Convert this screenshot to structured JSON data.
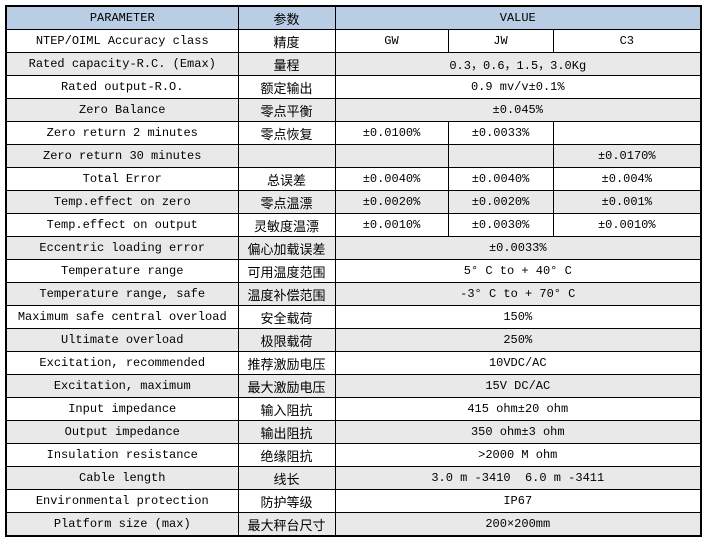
{
  "table": {
    "colors": {
      "header_bg": "#b9cde5",
      "row_alt_bg": "#e9e9e9",
      "border": "#000000"
    },
    "header": {
      "parameter": "PARAMETER",
      "cn": "参数",
      "value": "VALUE"
    },
    "rows": [
      {
        "param": "NTEP/OIML Accuracy class",
        "cn": "精度",
        "v": [
          "GW",
          "JW",
          "C3"
        ]
      },
      {
        "param": "Rated capacity-R.C. (Emax)",
        "cn": "量程",
        "v": [
          "0.3，0.6，1.5，3.0Kg"
        ]
      },
      {
        "param": "Rated output-R.O.",
        "cn": "额定输出",
        "v": [
          "0.9 mv/v±0.1%"
        ]
      },
      {
        "param": "Zero Balance",
        "cn": "零点平衡",
        "v": [
          "±0.045%"
        ]
      },
      {
        "param": "Zero return 2 minutes",
        "cn": "零点恢复",
        "v": [
          "±0.0100%",
          "±0.0033%",
          ""
        ]
      },
      {
        "param": "Zero return 30 minutes",
        "cn": "",
        "v": [
          "",
          "",
          "±0.0170%"
        ]
      },
      {
        "param": "Total Error",
        "cn": "总误差",
        "v": [
          "±0.0040%",
          "±0.0040%",
          "±0.004%"
        ]
      },
      {
        "param": "Temp.effect on zero",
        "cn": "零点温漂",
        "v": [
          "±0.0020%",
          "±0.0020%",
          "±0.001%"
        ]
      },
      {
        "param": "Temp.effect on output",
        "cn": "灵敏度温漂",
        "v": [
          "±0.0010%",
          "±0.0030%",
          "±0.0010%"
        ]
      },
      {
        "param": "Eccentric loading error",
        "cn": "偏心加载误差",
        "v": [
          "±0.0033%"
        ]
      },
      {
        "param": "Temperature range",
        "cn": "可用温度范围",
        "v": [
          "5° C to + 40° C"
        ]
      },
      {
        "param": "Temperature range, safe",
        "cn": "温度补偿范围",
        "v": [
          "-3° C to + 70° C"
        ]
      },
      {
        "param": "Maximum safe central overload",
        "cn": "安全载荷",
        "v": [
          "150%"
        ]
      },
      {
        "param": "Ultimate overload",
        "cn": "极限载荷",
        "v": [
          "250%"
        ]
      },
      {
        "param": "Excitation, recommended",
        "cn": "推荐激励电压",
        "v": [
          "10VDC/AC"
        ]
      },
      {
        "param": "Excitation, maximum",
        "cn": "最大激励电压",
        "v": [
          "15V DC/AC"
        ]
      },
      {
        "param": "Input impedance",
        "cn": "输入阻抗",
        "v": [
          "415 ohm±20 ohm"
        ]
      },
      {
        "param": "Output impedance",
        "cn": "输出阻抗",
        "v": [
          "350 ohm±3 ohm"
        ]
      },
      {
        "param": "Insulation resistance",
        "cn": "绝缘阻抗",
        "v": [
          ">2000 M ohm"
        ]
      },
      {
        "param": "Cable length",
        "cn": "线长",
        "v": [
          "3.0 m -3410  6.0 m -3411"
        ]
      },
      {
        "param": "Environmental protection",
        "cn": "防护等级",
        "v": [
          "IP67"
        ]
      },
      {
        "param": "Platform size (max)",
        "cn": "最大秤台尺寸",
        "v": [
          "200×200mm"
        ]
      }
    ]
  }
}
